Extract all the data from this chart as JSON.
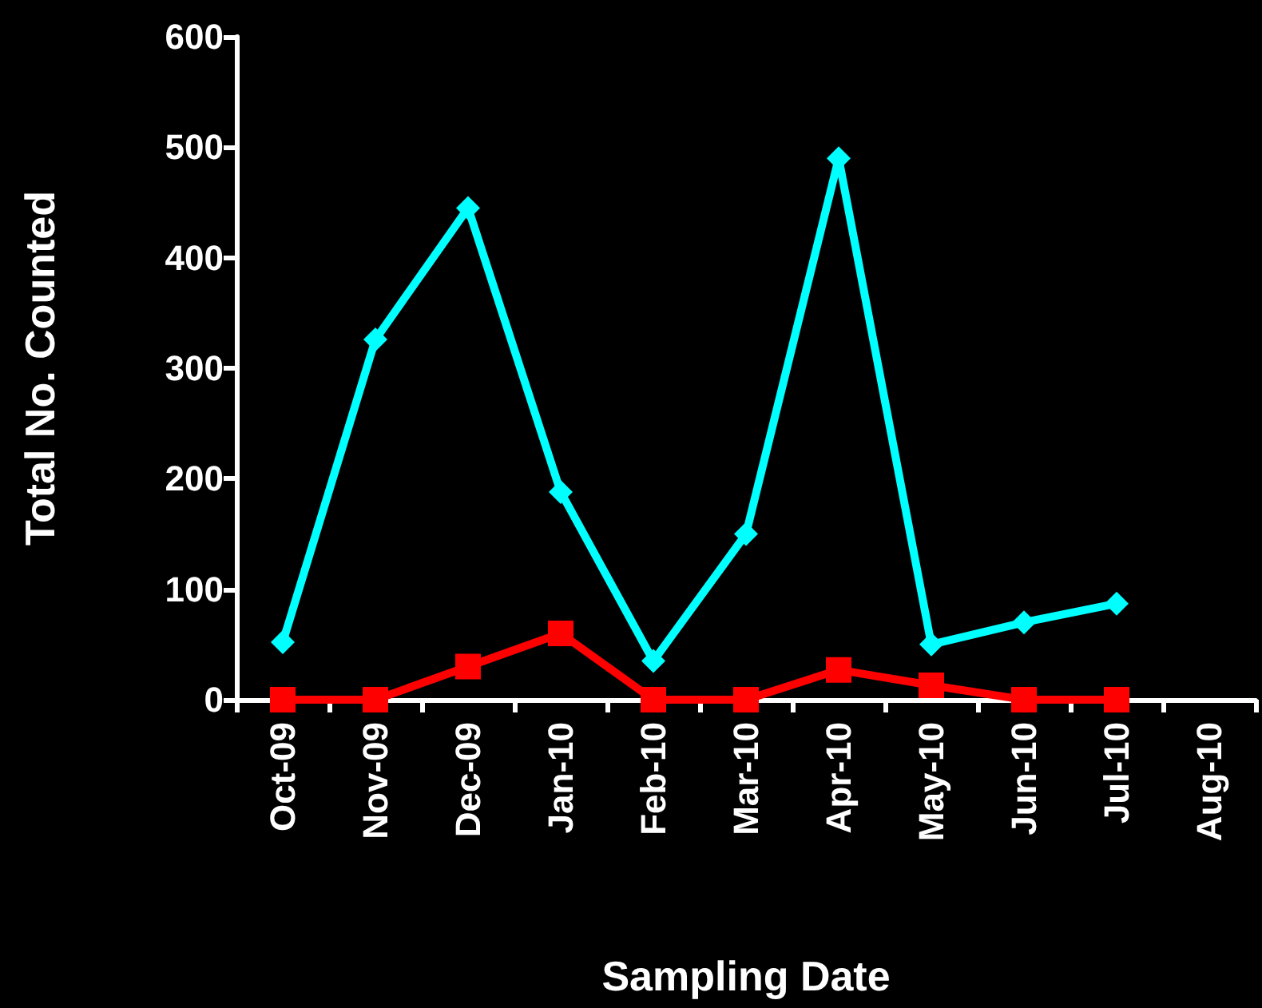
{
  "chart_data": {
    "type": "line",
    "xlabel": "Sampling Date",
    "ylabel": "Total No. Counted",
    "categories": [
      "Oct-09",
      "Nov-09",
      "Dec-09",
      "Jan-10",
      "Feb-10",
      "Mar-10",
      "Apr-10",
      "May-10",
      "Jun-10",
      "Jul-10",
      "Aug-10"
    ],
    "series": [
      {
        "color": "#00ffff",
        "marker": "diamond",
        "values": [
          52,
          326,
          445,
          188,
          35,
          150,
          490,
          50,
          70,
          87,
          null
        ]
      },
      {
        "color": "#ff0000",
        "marker": "square",
        "values": [
          0,
          0,
          30,
          60,
          0,
          0,
          27,
          13,
          0,
          0,
          null
        ]
      }
    ],
    "ylim": [
      0,
      600
    ],
    "yticks": [
      0,
      100,
      200,
      300,
      400,
      500,
      600
    ],
    "grid": false,
    "line_style": "solid"
  }
}
